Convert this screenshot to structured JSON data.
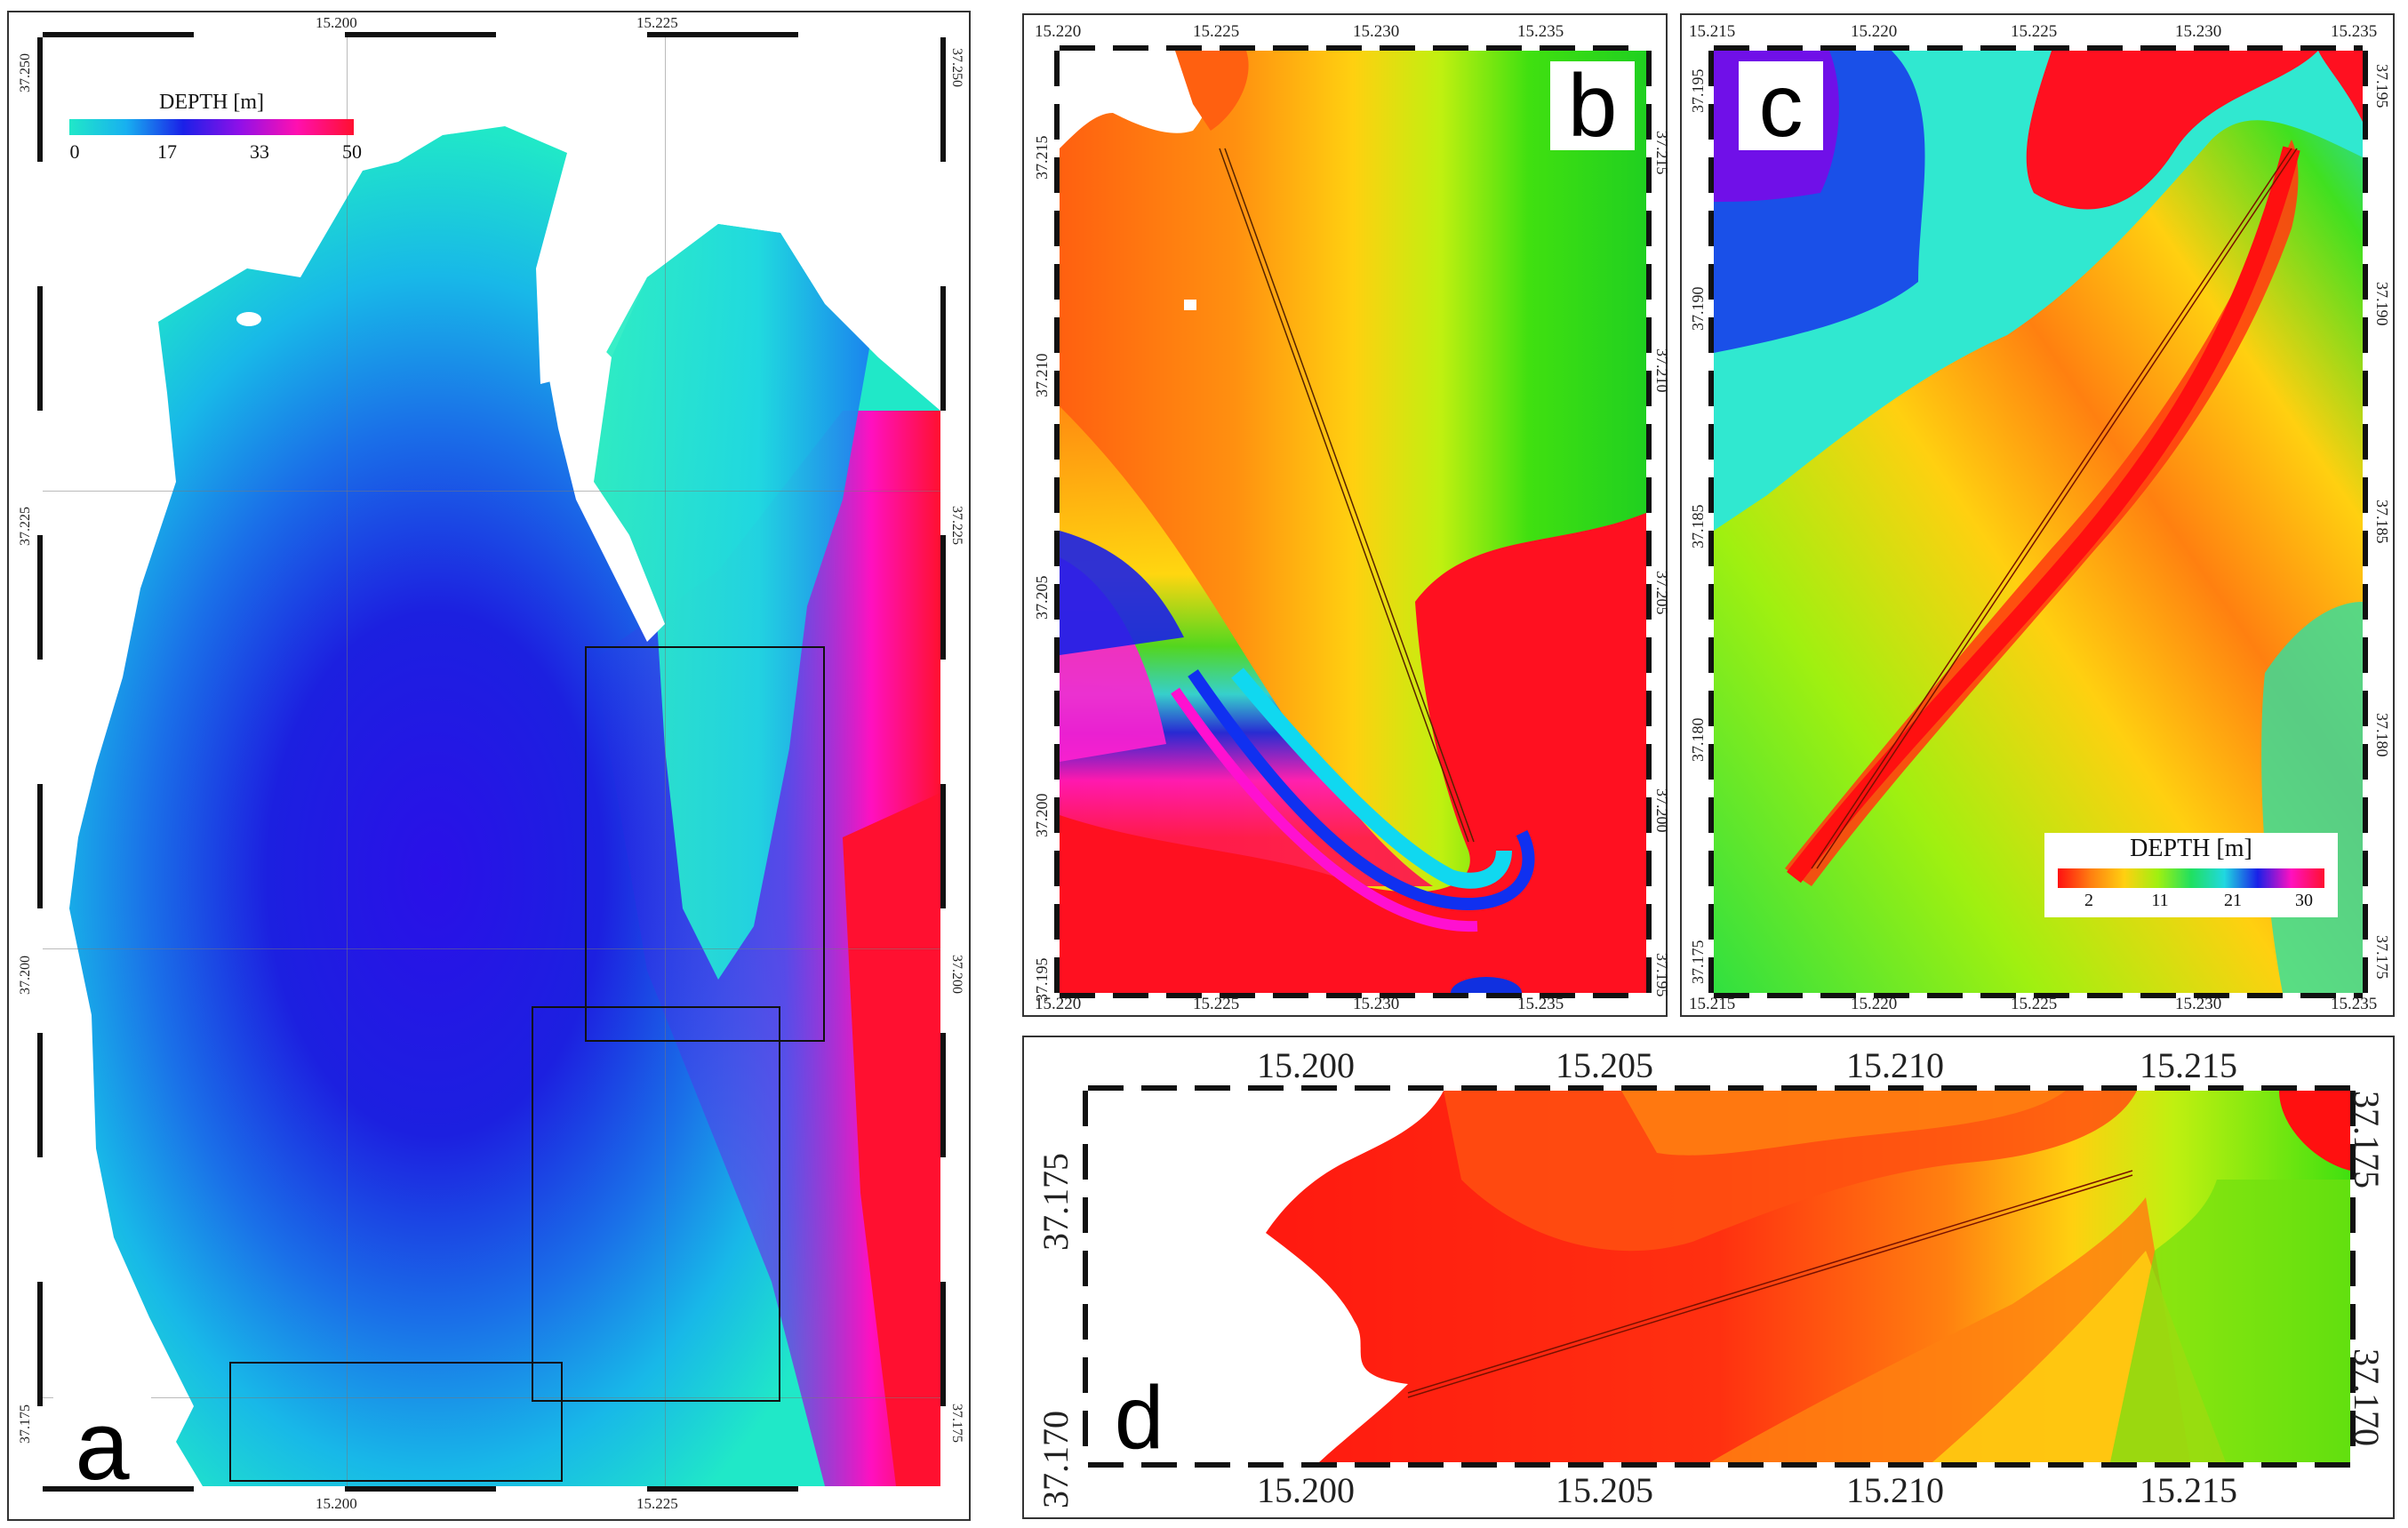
{
  "panels": {
    "a": {
      "letter": "a",
      "legend": {
        "title": "DEPTH [m]",
        "ticks": [
          "0",
          "17",
          "33",
          "50"
        ]
      },
      "top_ticks": [
        "15.200",
        "15.225"
      ],
      "bottom_ticks": [
        "15.200",
        "15.225"
      ],
      "left_ticks": [
        "37.250",
        "37.225",
        "37.200",
        "37.175"
      ],
      "right_ticks": [
        "37.250",
        "37.225",
        "37.200",
        "37.175"
      ],
      "colors": {
        "shallow": "#20e8c0",
        "mid": "#1010e0",
        "deep": "#ff10b0",
        "max": "#ff1030"
      }
    },
    "b": {
      "letter": "b",
      "top_ticks": [
        "15.220",
        "15.225",
        "15.230",
        "15.235"
      ],
      "bottom_ticks": [
        "15.220",
        "15.225",
        "15.230",
        "15.235"
      ],
      "left_ticks": [
        "37.215",
        "37.210",
        "37.205",
        "37.200",
        "37.195"
      ],
      "right_ticks": [
        "37.215",
        "37.210",
        "37.205",
        "37.200",
        "37.195"
      ]
    },
    "c": {
      "letter": "c",
      "legend": {
        "title": "DEPTH [m]",
        "ticks": [
          "2",
          "11",
          "21",
          "30"
        ]
      },
      "top_ticks": [
        "15.215",
        "15.220",
        "15.225",
        "15.230",
        "15.235"
      ],
      "bottom_ticks": [
        "15.215",
        "15.220",
        "15.225",
        "15.230",
        "15.235"
      ],
      "left_ticks": [
        "37.195",
        "37.190",
        "37.185",
        "37.180",
        "37.175"
      ],
      "right_ticks": [
        "37.195",
        "37.190",
        "37.185",
        "37.180",
        "37.175"
      ]
    },
    "d": {
      "letter": "d",
      "top_ticks": [
        "15.200",
        "15.205",
        "15.210",
        "15.215"
      ],
      "bottom_ticks": [
        "15.200",
        "15.205",
        "15.210",
        "15.215"
      ],
      "left_ticks": [
        "37.175",
        "37.170"
      ],
      "right_ticks": [
        "37.175",
        "37.170"
      ]
    }
  }
}
